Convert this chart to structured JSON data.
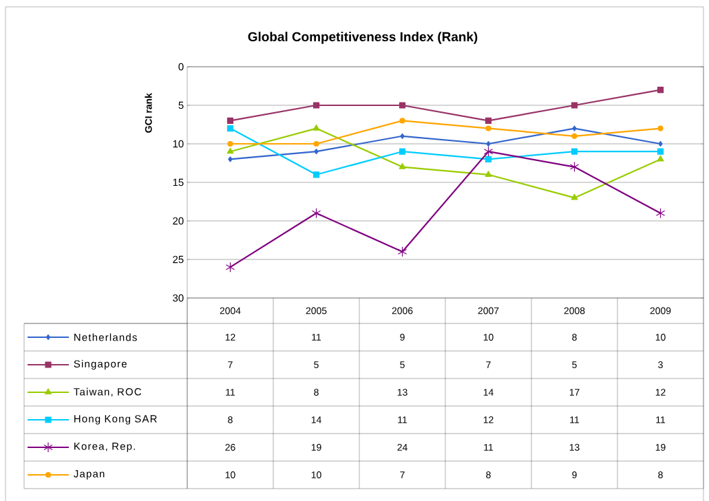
{
  "chart_data": {
    "type": "line",
    "title": "Global Competitiveness Index (Rank)",
    "ylabel": "GCI rank",
    "categories": [
      "2004",
      "2005",
      "2006",
      "2007",
      "2008",
      "2009"
    ],
    "series": [
      {
        "name": "Netherlands",
        "color": "#3366cc",
        "marker": "diamond",
        "values": [
          12,
          11,
          9,
          10,
          8,
          10
        ]
      },
      {
        "name": "Singapore",
        "color": "#993366",
        "marker": "square",
        "values": [
          7,
          5,
          5,
          7,
          5,
          3
        ]
      },
      {
        "name": "Taiwan, ROC",
        "color": "#99cc00",
        "marker": "triangle",
        "values": [
          11,
          8,
          13,
          14,
          17,
          12
        ]
      },
      {
        "name": "Hong Kong SAR",
        "color": "#00ccff",
        "marker": "square",
        "values": [
          8,
          14,
          11,
          12,
          11,
          11
        ]
      },
      {
        "name": "Korea, Rep.",
        "color": "#800080",
        "marker": "cross",
        "values": [
          26,
          19,
          24,
          11,
          13,
          19
        ]
      },
      {
        "name": "Japan",
        "color": "#ffa500",
        "marker": "circle",
        "values": [
          10,
          10,
          7,
          8,
          9,
          8
        ]
      }
    ],
    "ylim": [
      30,
      0
    ],
    "yticks": [
      0,
      5,
      10,
      15,
      20,
      25,
      30
    ],
    "grid": "y",
    "legend": "bottom",
    "data_labels": true,
    "line_style": "solid"
  }
}
